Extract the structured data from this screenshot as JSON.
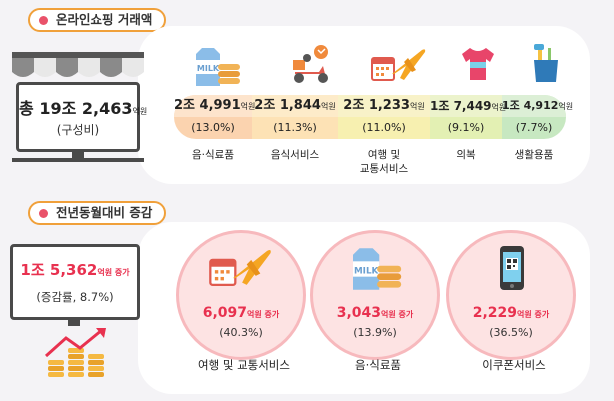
{
  "section1": {
    "title": "온라인쇼핑 거래액",
    "total": {
      "prefix": "총",
      "value": "19조 2,463",
      "unit": "억원",
      "note": "(구성비)"
    },
    "categories": [
      {
        "value": "2조 4,991",
        "unit": "억원",
        "pct": "(13.0%)",
        "label": "음·식료품",
        "icon": "milk-can-icon",
        "color": "#f7ae6d"
      },
      {
        "value": "2조 1,844",
        "unit": "억원",
        "pct": "(11.3%)",
        "label": "음식서비스",
        "icon": "delivery-scooter-icon",
        "color": "#fbcf84"
      },
      {
        "value": "2조 1,233",
        "unit": "억원",
        "pct": "(11.0%)",
        "label1": "여행 및",
        "label2": "교통서비스",
        "icon": "calendar-airplane-icon",
        "color": "#f3e886"
      },
      {
        "value": "1조 7,449",
        "unit": "억원",
        "pct": "(9.1%)",
        "label": "의복",
        "icon": "shirt-icon",
        "color": "#d4e88a"
      },
      {
        "value": "1조 4,912",
        "unit": "억원",
        "pct": "(7.7%)",
        "label": "생활용품",
        "icon": "household-goods-icon",
        "color": "#a9dca0"
      }
    ]
  },
  "section2": {
    "title": "전년동월대비 증감",
    "total": {
      "value": "1조 5,362",
      "unit": "억원 증가",
      "note": "(증감률, 8.7%)"
    },
    "items": [
      {
        "amount": "6,097",
        "unit": "억원 증가",
        "pct": "(40.3%)",
        "label": "여행 및 교통서비스",
        "icon": "calendar-airplane-icon"
      },
      {
        "amount": "3,043",
        "unit": "억원 증가",
        "pct": "(13.9%)",
        "label": "음·식료품",
        "icon": "milk-can-icon"
      },
      {
        "amount": "2,229",
        "unit": "억원 증가",
        "pct": "(36.5%)",
        "label": "이쿠폰서비스",
        "icon": "mobile-coupon-icon"
      }
    ]
  }
}
